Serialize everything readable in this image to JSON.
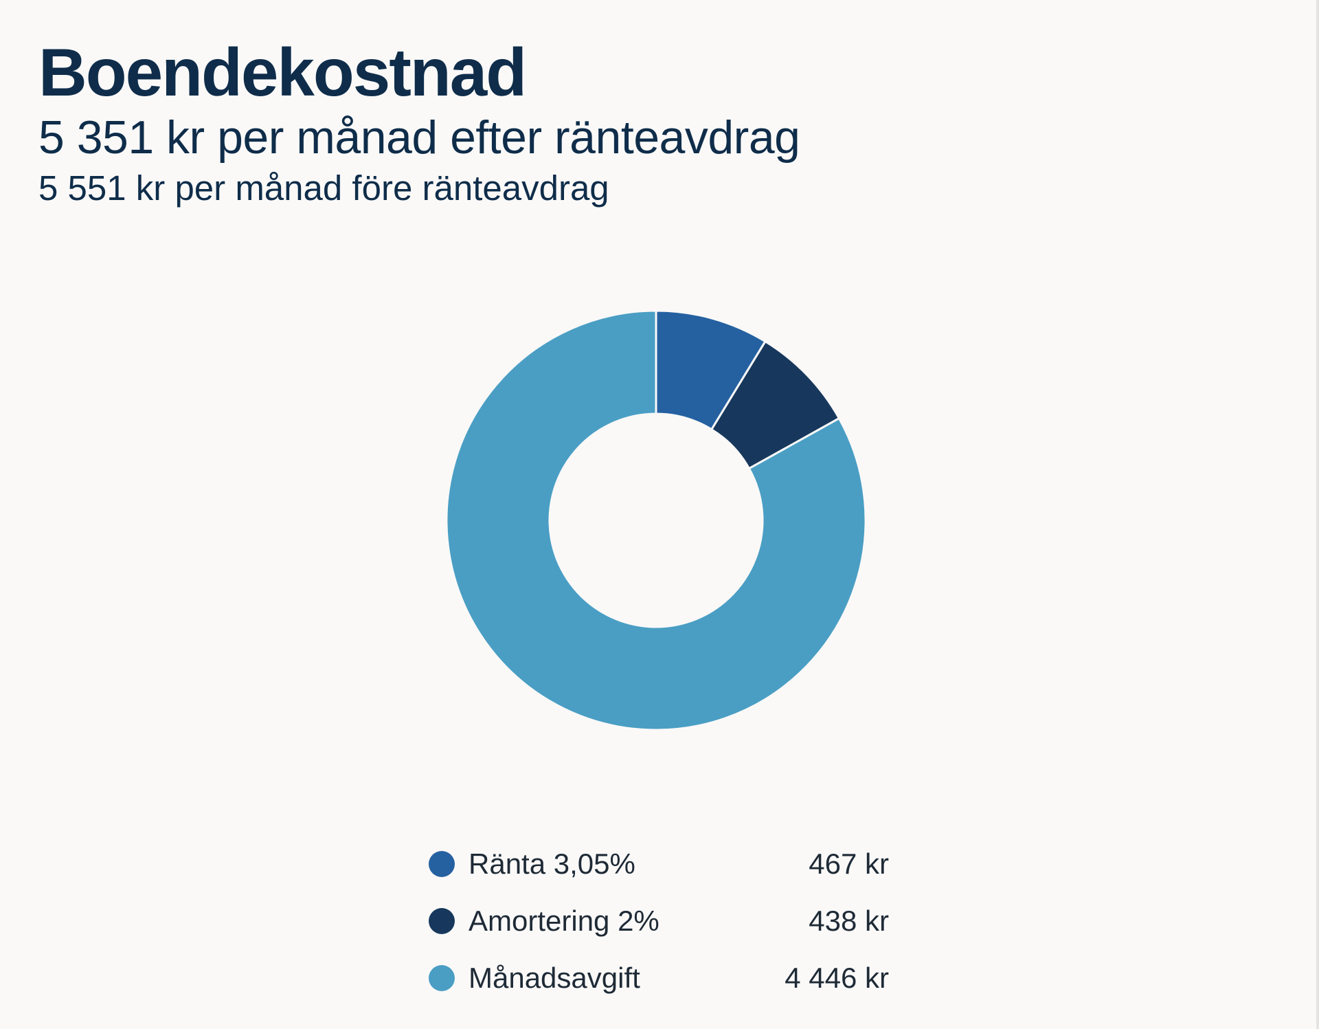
{
  "header": {
    "title": "Boendekostnad",
    "after_deduction": "5 351 kr per månad efter ränteavdrag",
    "before_deduction": "5 551 kr per månad före ränteavdrag"
  },
  "chart_data": {
    "type": "pie",
    "variant": "donut",
    "unit": "kr",
    "legend_position": "bottom",
    "series": [
      {
        "label": "Ränta 3,05%",
        "value": 467,
        "value_label": "467 kr",
        "color": "#2561a1"
      },
      {
        "label": "Amortering 2%",
        "value": 438,
        "value_label": "438 kr",
        "color": "#17385c"
      },
      {
        "label": "Månadsavgift",
        "value": 4446,
        "value_label": "4 446 kr",
        "color": "#4a9ec4"
      }
    ]
  }
}
